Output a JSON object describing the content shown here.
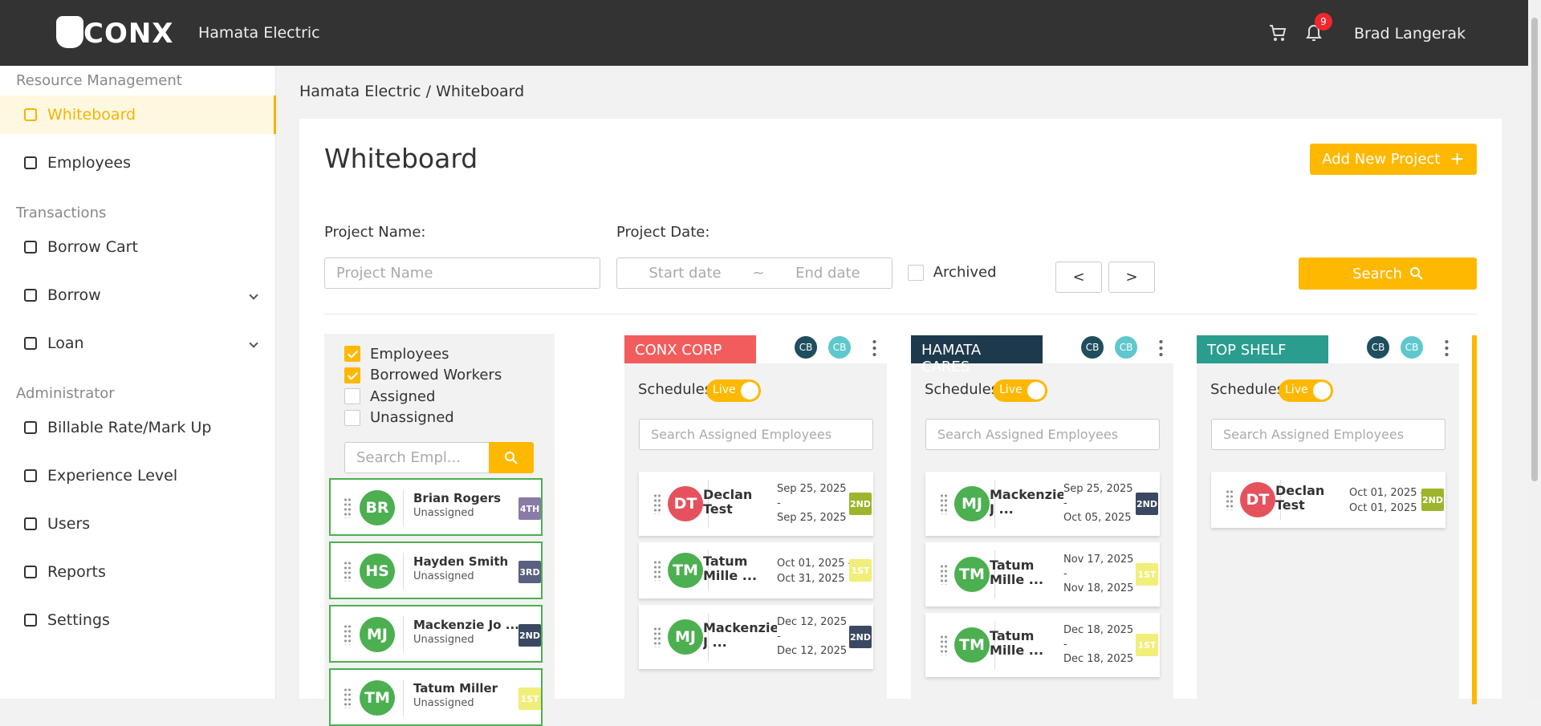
{
  "header": {
    "logo": "CONX",
    "company": "Hamata Electric",
    "notification_count": "9",
    "user": "Brad Langerak"
  },
  "sidebar": [
    {
      "title": "Resource Management",
      "items": [
        {
          "label": "Whiteboard",
          "active": true
        },
        {
          "label": "Employees"
        }
      ]
    },
    {
      "title": "Transactions",
      "items": [
        {
          "label": "Borrow Cart"
        },
        {
          "label": "Borrow",
          "expandable": true
        },
        {
          "label": "Loan",
          "expandable": true
        }
      ]
    },
    {
      "title": "Administrator",
      "items": [
        {
          "label": "Billable Rate/Mark Up"
        },
        {
          "label": "Experience Level"
        },
        {
          "label": "Users"
        },
        {
          "label": "Reports"
        },
        {
          "label": "Settings"
        }
      ]
    }
  ],
  "breadcrumb": "Hamata Electric / Whiteboard",
  "page_title": "Whiteboard",
  "add_button": "Add New Project",
  "filters": {
    "project_name_label": "Project Name:",
    "project_name_placeholder": "Project Name",
    "project_date_label": "Project Date:",
    "start_placeholder": "Start date",
    "date_separator": "~",
    "end_placeholder": "End date",
    "archived": "Archived",
    "prev": "<",
    "next": ">",
    "search": "Search"
  },
  "employee_panel": {
    "checkboxes": [
      {
        "label": "Employees",
        "checked": true
      },
      {
        "label": "Borrowed Workers",
        "checked": true
      },
      {
        "label": "Assigned",
        "checked": false
      },
      {
        "label": "Unassigned",
        "checked": false
      }
    ],
    "search_placeholder": "Search Empl...",
    "employees": [
      {
        "initials": "BR",
        "name": "Brian Rogers",
        "status": "Unassigned",
        "shift": "4TH",
        "shift_color": "#8a7ba6"
      },
      {
        "initials": "HS",
        "name": "Hayden Smith",
        "status": "Unassigned",
        "shift": "3RD",
        "shift_color": "#5b5f80"
      },
      {
        "initials": "MJ",
        "name": "Mackenzie Jo ...",
        "status": "Unassigned",
        "shift": "2ND",
        "shift_color": "#3b4863"
      },
      {
        "initials": "TM",
        "name": "Tatum Miller",
        "status": "Unassigned",
        "shift": "1ST",
        "shift_color": "#f1ee7a"
      }
    ]
  },
  "projects": [
    {
      "name": "CONX CORP",
      "color": "#f35c5c",
      "avatars": [
        "CB",
        "CB"
      ],
      "schedules_label": "Schedules",
      "live_label": "Live",
      "search_placeholder": "Search Assigned Employees",
      "assignments": [
        {
          "initials": "DT",
          "name": "Declan Test",
          "avatar_color": "#e5525e",
          "dates": [
            "Sep 25, 2025",
            "-",
            "Sep 25, 2025"
          ],
          "shift": "2ND",
          "shift_color": "#9db52c"
        },
        {
          "initials": "TM",
          "name": "Tatum Mille ...",
          "avatar_color": "#4caf50",
          "dates": [
            "Oct 01, 2025 -",
            "Oct 31, 2025"
          ],
          "shift": "1ST",
          "shift_color": "#f1ee7a"
        },
        {
          "initials": "MJ",
          "name": "Mackenzie J ...",
          "avatar_color": "#4caf50",
          "dates": [
            "Dec 12, 2025",
            "-",
            "Dec 12, 2025"
          ],
          "shift": "2ND",
          "shift_color": "#3b4863"
        }
      ]
    },
    {
      "name": "HAMATA CARES",
      "color": "#1d3a4c",
      "avatars": [
        "CB",
        "CB"
      ],
      "schedules_label": "Schedules",
      "live_label": "Live",
      "search_placeholder": "Search Assigned Employees",
      "assignments": [
        {
          "initials": "MJ",
          "name": "Mackenzie J ...",
          "avatar_color": "#4caf50",
          "dates": [
            "Sep 25, 2025",
            "-",
            "Oct 05, 2025"
          ],
          "shift": "2ND",
          "shift_color": "#3b4863"
        },
        {
          "initials": "TM",
          "name": "Tatum Mille ...",
          "avatar_color": "#4caf50",
          "dates": [
            "Nov 17, 2025",
            "-",
            "Nov 18, 2025"
          ],
          "shift": "1ST",
          "shift_color": "#f1ee7a"
        },
        {
          "initials": "TM",
          "name": "Tatum Mille ...",
          "avatar_color": "#4caf50",
          "dates": [
            "Dec 18, 2025",
            "-",
            "Dec 18, 2025"
          ],
          "shift": "1ST",
          "shift_color": "#f1ee7a"
        }
      ]
    },
    {
      "name": "TOP SHELF",
      "color": "#2a9d8f",
      "avatars": [
        "CB",
        "CB"
      ],
      "schedules_label": "Schedules",
      "live_label": "Live",
      "search_placeholder": "Search Assigned Employees",
      "assignments": [
        {
          "initials": "DT",
          "name": "Declan Test",
          "avatar_color": "#e5525e",
          "dates": [
            "Oct 01, 2025 -",
            "Oct 01, 2025"
          ],
          "shift": "2ND",
          "shift_color": "#9db52c"
        }
      ]
    }
  ]
}
